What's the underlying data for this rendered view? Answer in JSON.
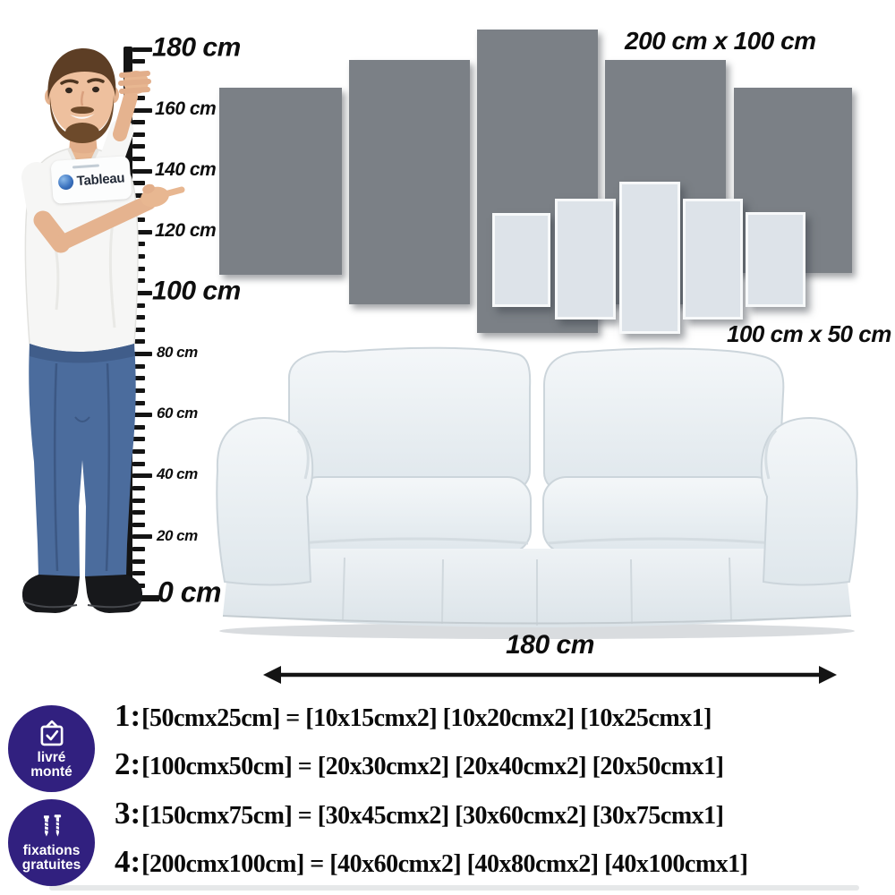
{
  "canvas_sets": {
    "large_set_label": "200 cm x 100 cm",
    "small_set_label": "100 cm x 50 cm"
  },
  "ruler": {
    "labels": [
      "180 cm",
      "160 cm",
      "140 cm",
      "120 cm",
      "100 cm",
      "80 cm",
      "60 cm",
      "40 cm",
      "20 cm",
      "0 cm"
    ]
  },
  "model": {
    "shirt_logo_text": "Tableau"
  },
  "sofa": {
    "width_label": "180 cm"
  },
  "badges": [
    {
      "icon": "bag-check-icon",
      "line1": "livré",
      "line2": "monté"
    },
    {
      "icon": "screws-icon",
      "line1": "fixations",
      "line2": "gratuites"
    }
  ],
  "size_options": [
    {
      "num": "1:",
      "text": "[50cmx25cm] = [10x15cmx2] [10x20cmx2] [10x25cmx1]"
    },
    {
      "num": "2:",
      "text": "[100cmx50cm] = [20x30cmx2] [20x40cmx2] [20x50cmx1]"
    },
    {
      "num": "3:",
      "text": "[150cmx75cm] = [30x45cmx2] [30x60cmx2] [30x75cmx1]"
    },
    {
      "num": "4:",
      "text": "[200cmx100cm] = [40x60cmx2] [40x80cmx2] [40x100cmx1]"
    }
  ],
  "colors": {
    "badge_purple": "#31207f",
    "large_panel_gray": "#7b8086",
    "small_panel_gray": "#dde3e9",
    "ruler_black": "#141414"
  }
}
